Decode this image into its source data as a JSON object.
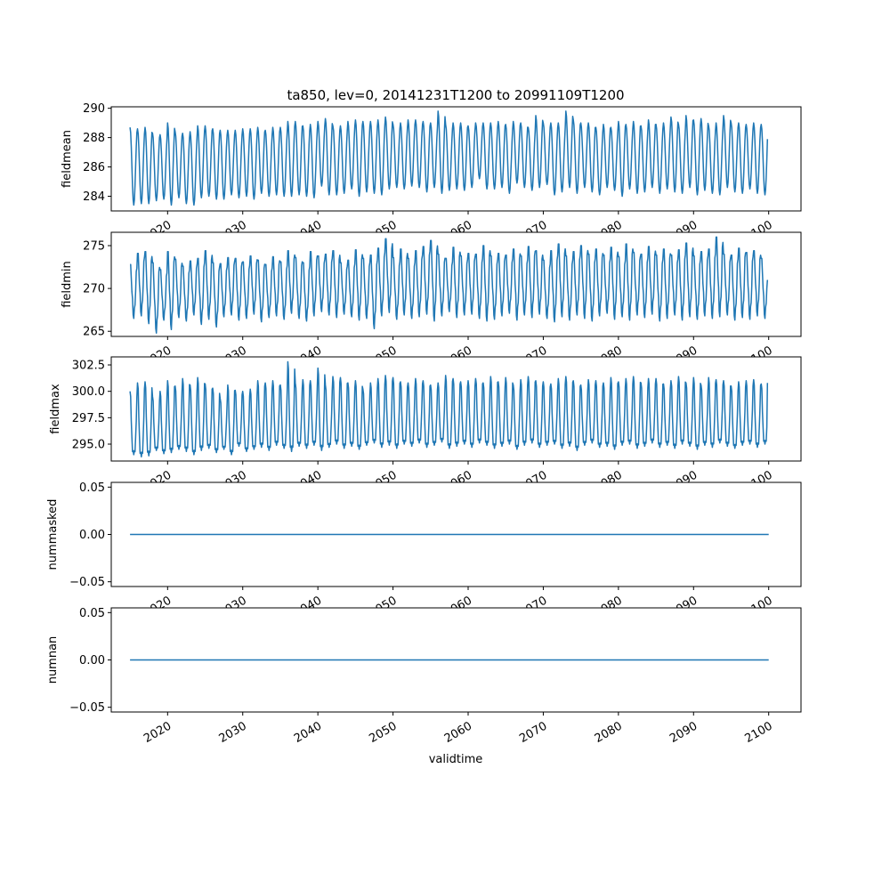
{
  "chart_data": {
    "type": "line",
    "title": "ta850, lev=0, 20141231T1200 to 20991109T1200",
    "xlabel": "validtime",
    "xlim": [
      2012.5,
      2104.3
    ],
    "xticks": [
      2020,
      2030,
      2040,
      2050,
      2060,
      2070,
      2080,
      2090,
      2100
    ],
    "x_start": 2015.0,
    "x_end": 2099.86,
    "sampling": "monthly",
    "line_color": "#1f77b4",
    "panels": [
      {
        "ylabel": "fieldmean",
        "ylim": [
          283.0,
          290.1
        ],
        "yticks": [
          284,
          286,
          288,
          290
        ],
        "ytick_labels": [
          "284",
          "286",
          "288",
          "290"
        ],
        "start_value": 288.7,
        "end_value": 287.9,
        "annual_peaks": [
          288.7,
          288.6,
          288.7,
          288.3,
          288.2,
          289.0,
          288.4,
          288.3,
          288.4,
          288.8,
          288.8,
          288.6,
          288.5,
          288.5,
          288.5,
          288.6,
          288.6,
          288.7,
          288.5,
          288.7,
          288.7,
          289.1,
          289.1,
          288.8,
          288.9,
          289.1,
          289.3,
          288.8,
          288.8,
          289.1,
          289.2,
          289.1,
          289.1,
          289.2,
          289.4,
          288.9,
          289.0,
          289.2,
          289.2,
          289.1,
          289.0,
          289.8,
          288.9,
          289.0,
          289.0,
          288.8,
          289.0,
          289.0,
          289.0,
          289.1,
          288.9,
          289.1,
          289.0,
          288.7,
          289.5,
          289.0,
          289.0,
          289.0,
          289.8,
          289.2,
          289.0,
          289.0,
          288.7,
          288.9,
          288.7,
          289.1,
          288.9,
          289.1,
          288.8,
          289.2,
          288.9,
          289.0,
          289.4,
          288.9,
          289.5,
          289.2,
          289.3,
          288.8,
          289.0,
          289.5,
          289.0,
          289.0,
          288.9,
          289.0,
          288.9
        ],
        "annual_troughs": [
          283.4,
          283.5,
          283.5,
          283.7,
          283.8,
          283.4,
          283.9,
          283.5,
          283.4,
          283.9,
          284.0,
          283.8,
          283.8,
          284.1,
          283.9,
          284.0,
          283.8,
          284.2,
          284.0,
          284.1,
          284.0,
          284.0,
          284.1,
          284.0,
          283.9,
          284.7,
          284.1,
          284.1,
          284.2,
          284.5,
          284.0,
          284.3,
          284.2,
          284.1,
          284.5,
          284.6,
          284.5,
          284.7,
          284.6,
          284.3,
          284.6,
          284.2,
          284.4,
          284.5,
          284.4,
          284.6,
          285.2,
          284.5,
          284.5,
          284.6,
          284.2,
          284.9,
          284.6,
          284.4,
          284.6,
          284.8,
          284.1,
          284.3,
          284.6,
          284.2,
          284.6,
          284.3,
          284.1,
          284.6,
          284.4,
          284.0,
          284.5,
          284.2,
          284.3,
          284.6,
          284.2,
          284.5,
          284.3,
          284.2,
          284.6,
          284.1,
          284.4,
          284.2,
          284.1,
          284.6,
          284.3,
          284.2,
          284.5,
          284.2,
          284.1
        ]
      },
      {
        "ylabel": "fieldmin",
        "ylim": [
          264.4,
          276.56
        ],
        "yticks": [
          265,
          270,
          275
        ],
        "ytick_labels": [
          "265",
          "270",
          "275"
        ],
        "start_value": 272.8,
        "end_value": 271.0,
        "annual_peaks": [
          272.8,
          274.1,
          274.3,
          273.0,
          272.2,
          274.3,
          273.4,
          272.6,
          273.2,
          273.5,
          274.4,
          273.0,
          272.9,
          273.6,
          273.5,
          273.1,
          273.8,
          273.3,
          272.8,
          273.7,
          273.1,
          274.4,
          273.6,
          273.0,
          274.3,
          273.8,
          274.0,
          274.4,
          273.0,
          273.3,
          274.5,
          273.5,
          273.9,
          274.7,
          275.8,
          273.6,
          274.6,
          273.5,
          274.4,
          274.9,
          275.6,
          274.0,
          273.5,
          274.8,
          273.8,
          274.1,
          274.0,
          275.0,
          273.8,
          274.1,
          273.9,
          274.6,
          273.8,
          274.9,
          274.4,
          273.3,
          274.4,
          275.2,
          273.8,
          274.3,
          275.0,
          274.0,
          274.6,
          273.9,
          274.8,
          273.7,
          275.2,
          274.2,
          274.0,
          274.9,
          273.9,
          274.6,
          273.9,
          274.5,
          275.3,
          273.8,
          274.3,
          274.6,
          276.0,
          274.0,
          273.9,
          274.7,
          274.2,
          274.4,
          273.5
        ],
        "annual_troughs": [
          266.5,
          266.8,
          265.9,
          264.8,
          266.3,
          265.2,
          266.6,
          266.2,
          266.9,
          265.8,
          266.4,
          265.5,
          266.7,
          266.9,
          266.3,
          266.5,
          267.0,
          266.1,
          266.6,
          266.8,
          266.4,
          267.1,
          266.5,
          266.2,
          266.8,
          267.3,
          266.9,
          266.6,
          267.0,
          266.7,
          266.3,
          266.5,
          265.3,
          266.8,
          267.2,
          266.4,
          266.9,
          266.5,
          266.7,
          267.0,
          266.2,
          266.8,
          267.3,
          266.6,
          266.9,
          267.0,
          266.5,
          266.2,
          266.4,
          266.8,
          267.1,
          266.3,
          266.9,
          266.6,
          267.0,
          266.5,
          266.1,
          266.7,
          266.3,
          266.9,
          266.5,
          266.2,
          266.8,
          267.1,
          266.4,
          266.7,
          266.3,
          266.9,
          266.6,
          267.0,
          266.2,
          266.5,
          266.9,
          266.3,
          266.7,
          266.4,
          266.8,
          266.5,
          266.7,
          266.9,
          266.3,
          266.6,
          266.4,
          266.8,
          266.5
        ]
      },
      {
        "ylabel": "fieldmax",
        "ylim": [
          293.4,
          303.26
        ],
        "yticks": [
          295.0,
          297.5,
          300.0,
          302.5
        ],
        "ytick_labels": [
          "295.0",
          "297.5",
          "300.0",
          "302.5"
        ],
        "start_value": 300.0,
        "end_value": 300.8,
        "annual_peaks": [
          300.0,
          300.8,
          300.9,
          299.5,
          300.0,
          301.0,
          300.5,
          301.2,
          300.6,
          301.3,
          300.7,
          300.3,
          299.3,
          300.6,
          300.1,
          300.0,
          300.2,
          301.0,
          300.8,
          301.0,
          300.6,
          302.8,
          300.8,
          301.1,
          301.0,
          302.2,
          300.6,
          301.4,
          301.3,
          300.8,
          301.0,
          300.2,
          300.8,
          301.2,
          301.5,
          301.3,
          300.9,
          300.8,
          301.2,
          301.0,
          300.6,
          300.8,
          301.5,
          301.2,
          300.9,
          301.0,
          301.2,
          300.8,
          301.4,
          300.9,
          301.3,
          300.6,
          301.1,
          301.4,
          301.0,
          300.9,
          300.7,
          301.2,
          301.4,
          301.0,
          300.6,
          301.1,
          301.0,
          300.8,
          301.3,
          300.9,
          301.2,
          301.4,
          300.8,
          301.2,
          301.2,
          300.7,
          301.0,
          301.4,
          300.8,
          301.3,
          300.6,
          301.3,
          301.1,
          301.0,
          300.5,
          300.9,
          301.0,
          301.1,
          300.7
        ],
        "annual_troughs": [
          294.0,
          293.8,
          293.9,
          294.4,
          294.1,
          294.2,
          294.5,
          294.3,
          294.0,
          294.4,
          294.6,
          294.2,
          294.5,
          294.0,
          294.8,
          294.3,
          294.5,
          294.7,
          294.4,
          294.9,
          294.6,
          294.3,
          294.8,
          294.6,
          294.9,
          294.4,
          294.7,
          295.0,
          294.6,
          294.8,
          294.5,
          294.9,
          295.1,
          294.7,
          294.9,
          294.6,
          295.0,
          294.8,
          295.1,
          294.7,
          294.9,
          295.2,
          294.6,
          294.8,
          295.0,
          294.7,
          295.1,
          294.9,
          294.6,
          294.8,
          295.0,
          294.5,
          294.9,
          295.1,
          294.7,
          294.9,
          295.0,
          294.6,
          294.8,
          294.4,
          294.9,
          295.1,
          294.7,
          294.8,
          294.5,
          294.9,
          295.0,
          294.6,
          294.8,
          295.1,
          294.7,
          294.9,
          294.6,
          295.0,
          294.8,
          294.5,
          294.9,
          294.7,
          295.1,
          294.8,
          294.6,
          294.9,
          295.0,
          294.7,
          295.0
        ]
      },
      {
        "ylabel": "nummasked",
        "ylim": [
          -0.055,
          0.055
        ],
        "yticks": [
          -0.05,
          0.0,
          0.05
        ],
        "ytick_labels": [
          "−0.05",
          "0.00",
          "0.05"
        ],
        "constant_value": 0.0
      },
      {
        "ylabel": "numnan",
        "ylim": [
          -0.055,
          0.055
        ],
        "yticks": [
          -0.05,
          0.0,
          0.05
        ],
        "ytick_labels": [
          "−0.05",
          "0.00",
          "0.05"
        ],
        "constant_value": 0.0
      }
    ],
    "grid": false,
    "legend": "none"
  }
}
